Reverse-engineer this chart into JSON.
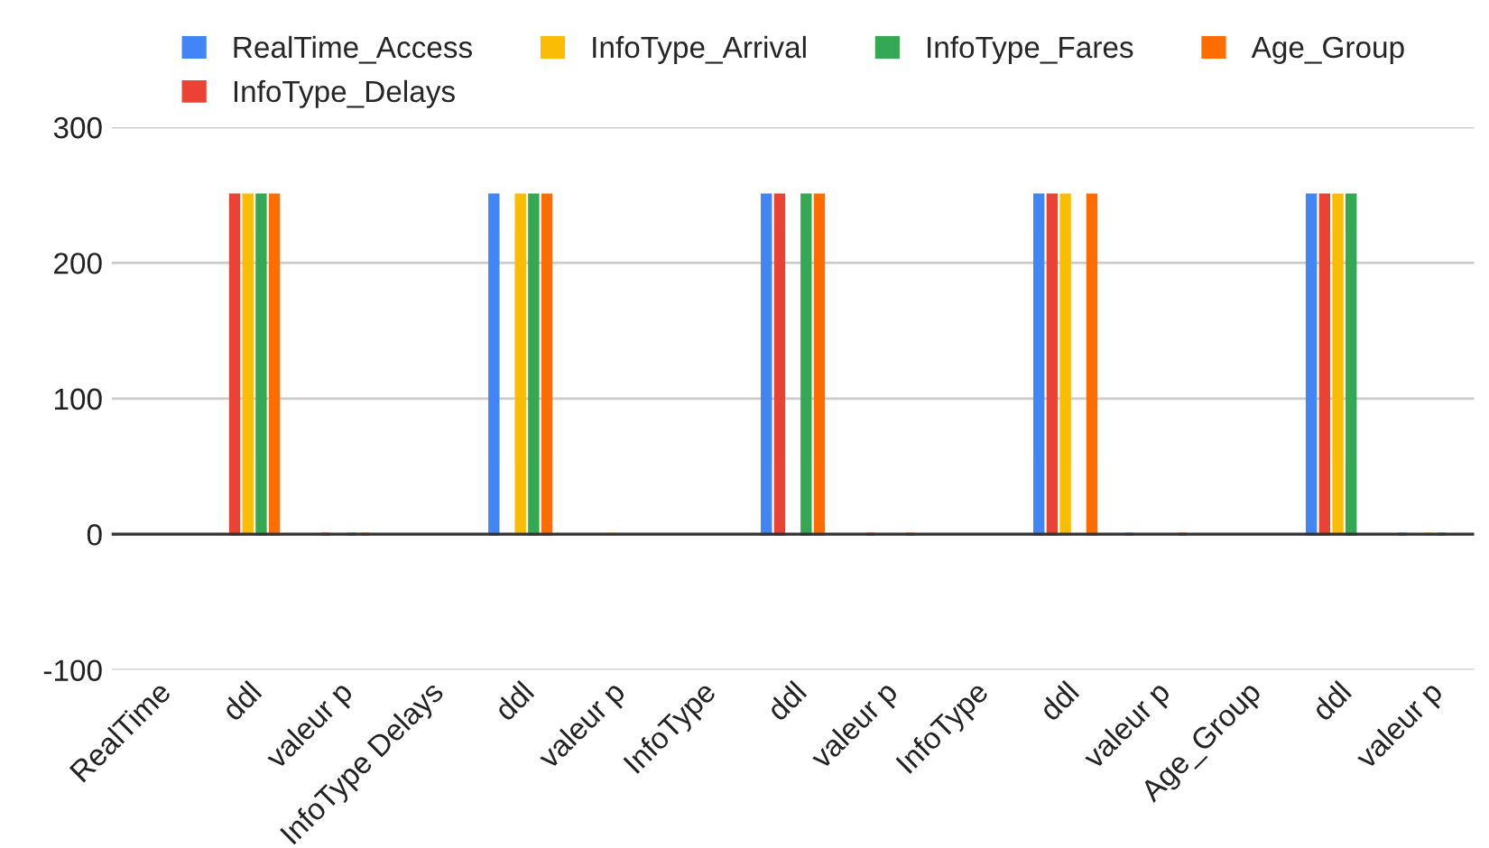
{
  "chart_data": {
    "type": "bar",
    "categories": [
      "RealTime",
      "ddl",
      "valeur p",
      "InfoType Delays",
      "ddl",
      "valeur p",
      "InfoType",
      "ddl",
      "valeur p",
      "InfoType",
      "ddl",
      "valeur p",
      "Age_Group",
      "ddl",
      "valeur p"
    ],
    "series": [
      {
        "name": "RealTime_Access",
        "color": "#4285f4",
        "values": [
          null,
          null,
          null,
          null,
          250,
          null,
          null,
          250,
          null,
          null,
          250,
          0,
          null,
          250,
          0
        ]
      },
      {
        "name": "InfoType_Delays",
        "color": "#ea4335",
        "values": [
          null,
          250,
          0,
          null,
          null,
          null,
          null,
          250,
          0,
          null,
          250,
          null,
          null,
          250,
          null
        ]
      },
      {
        "name": "InfoType_Arrival",
        "color": "#fbbc04",
        "values": [
          null,
          250,
          null,
          null,
          250,
          0,
          null,
          null,
          null,
          null,
          250,
          null,
          null,
          250,
          0
        ]
      },
      {
        "name": "InfoType_Fares",
        "color": "#34a853",
        "values": [
          null,
          250,
          0,
          null,
          250,
          null,
          null,
          250,
          null,
          null,
          null,
          null,
          null,
          250,
          0
        ]
      },
      {
        "name": "Age_Group",
        "color": "#ff6d01",
        "values": [
          null,
          250,
          0,
          null,
          250,
          null,
          null,
          250,
          0,
          null,
          250,
          0,
          null,
          null,
          null
        ]
      }
    ],
    "ylim": [
      -100,
      300
    ],
    "yticks": [
      -100,
      0,
      100,
      200,
      300
    ],
    "grid": "y",
    "legend": "top"
  }
}
